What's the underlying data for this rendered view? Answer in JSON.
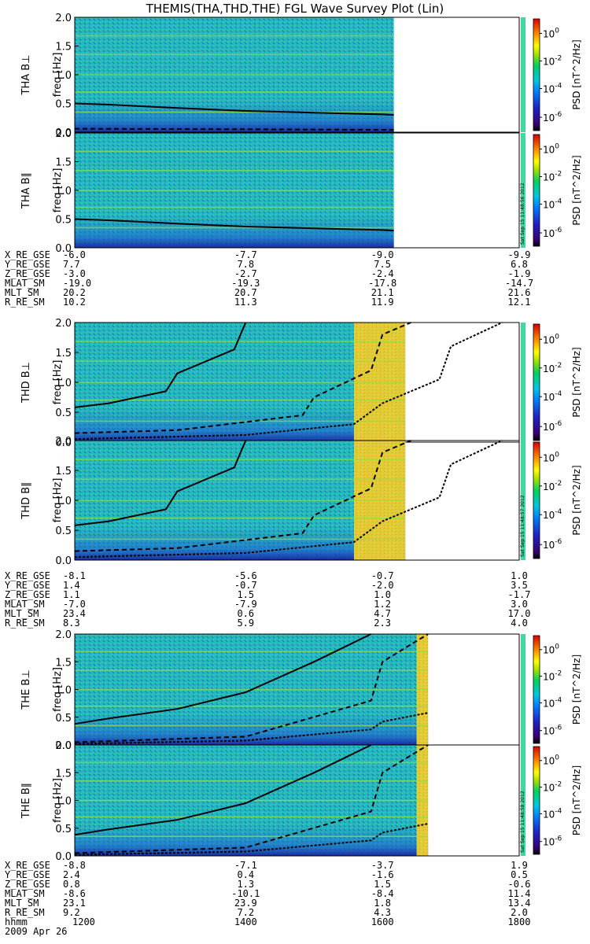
{
  "chart_data": {
    "type": "heatmap",
    "title": "THEMIS(THA,THD,THE) FGL Wave Survey Plot (Lin)",
    "ylabel": "freq [Hz]",
    "colorbar_label": "PSD [nT^2/Hz]",
    "colorbar_ticks": [
      "10^0",
      "10^-2",
      "10^-4",
      "10^-6"
    ],
    "y_ticks": [
      "0.0",
      "0.5",
      "1.0",
      "1.5",
      "2.0"
    ],
    "ylim": [
      0,
      2.0
    ],
    "x_range_hhmm": [
      1130,
      1800
    ],
    "date_label": "2009 Apr 26",
    "time_label_name": "hhmm",
    "time_ticks": [
      "1200",
      "1400",
      "1600",
      "1800"
    ],
    "stamps": [
      "Sat Sep 15 11:48:56 2012",
      "Sat Sep 15 11:48:57 2012",
      "Sat Sep 15 11:48:58 2012"
    ],
    "probes": [
      {
        "panels": [
          {
            "label": "THA B⊥",
            "data_end_x": 1610,
            "curve_solid": {
              "x": [
                1130,
                1200,
                1300,
                1400,
                1500,
                1600,
                1610
              ],
              "y": [
                0.5,
                0.48,
                0.42,
                0.37,
                0.34,
                0.31,
                0.3
              ]
            },
            "curve_dashed": {
              "x": [
                1130,
                1400,
                1610
              ],
              "y": [
                0.06,
                0.05,
                0.04
              ]
            }
          },
          {
            "label": "THA B∥",
            "data_end_x": 1610,
            "curve_solid": {
              "x": [
                1130,
                1200,
                1300,
                1400,
                1500,
                1600,
                1610
              ],
              "y": [
                0.5,
                0.48,
                0.42,
                0.37,
                0.34,
                0.31,
                0.3
              ]
            }
          }
        ],
        "ephemeris": {
          "x_pos": [
            1130,
            1400,
            1600,
            1800
          ],
          "rows": [
            {
              "name": "X_RE_GSE",
              "values": [
                "-6.0",
                "-7.7",
                "-9.0",
                "-9.9"
              ]
            },
            {
              "name": "Y_RE_GSE",
              "values": [
                "7.7",
                "7.8",
                "7.5",
                "6.8"
              ]
            },
            {
              "name": "Z_RE_GSE",
              "values": [
                "-3.0",
                "-2.7",
                "-2.4",
                "-1.9"
              ]
            },
            {
              "name": "MLAT_SM",
              "values": [
                "-19.0",
                "-19.3",
                "-17.8",
                "-14.7"
              ]
            },
            {
              "name": "MLT_SM",
              "values": [
                "20.2",
                "20.7",
                "21.1",
                "21.6"
              ]
            },
            {
              "name": "R_RE_SM",
              "values": [
                "10.2",
                "11.3",
                "11.9",
                "12.1"
              ]
            }
          ]
        }
      },
      {
        "panels": [
          {
            "label": "THD B⊥",
            "data_end_x": 1620,
            "bright_from_x": 1535,
            "curve_solid": {
              "x": [
                1130,
                1200,
                1250,
                1300,
                1350,
                1400
              ],
              "y": [
                0.58,
                0.65,
                0.85,
                1.15,
                1.55,
                2.0
              ]
            },
            "curve_dashed": {
              "x": [
                1130,
                1300,
                1450,
                1500,
                1550,
                1600,
                1625
              ],
              "y": [
                0.15,
                0.2,
                0.45,
                0.75,
                1.2,
                1.8,
                2.0
              ]
            },
            "curve_dotted": {
              "x": [
                1130,
                1400,
                1535,
                1600,
                1650,
                1700,
                1745
              ],
              "y": [
                0.05,
                0.12,
                0.3,
                0.65,
                1.05,
                1.6,
                2.0
              ]
            }
          },
          {
            "label": "THD B∥",
            "data_end_x": 1620,
            "bright_from_x": 1535,
            "curve_solid": {
              "x": [
                1130,
                1200,
                1250,
                1300,
                1350,
                1400
              ],
              "y": [
                0.58,
                0.65,
                0.85,
                1.15,
                1.55,
                2.0
              ]
            },
            "curve_dashed": {
              "x": [
                1130,
                1300,
                1450,
                1500,
                1550,
                1600,
                1625
              ],
              "y": [
                0.15,
                0.2,
                0.45,
                0.75,
                1.2,
                1.8,
                2.0
              ]
            },
            "curve_dotted": {
              "x": [
                1130,
                1400,
                1535,
                1600,
                1650,
                1700,
                1745
              ],
              "y": [
                0.05,
                0.12,
                0.3,
                0.65,
                1.05,
                1.6,
                2.0
              ]
            }
          }
        ],
        "ephemeris": {
          "x_pos": [
            1130,
            1400,
            1600,
            1800
          ],
          "rows": [
            {
              "name": "X_RE_GSE",
              "values": [
                "-8.1",
                "-5.6",
                "-0.7",
                "1.0"
              ]
            },
            {
              "name": "Y_RE_GSE",
              "values": [
                "1.4",
                "-0.7",
                "-2.0",
                "3.5"
              ]
            },
            {
              "name": "Z_RE_GSE",
              "values": [
                "1.1",
                "1.5",
                "1.0",
                "-1.7"
              ]
            },
            {
              "name": "MLAT_SM",
              "values": [
                "-7.0",
                "-7.9",
                "1.2",
                "3.0"
              ]
            },
            {
              "name": "MLT_SM",
              "values": [
                "23.4",
                "0.6",
                "4.7",
                "17.0"
              ]
            },
            {
              "name": "R_RE_SM",
              "values": [
                "8.3",
                "5.9",
                "2.3",
                "4.0"
              ]
            }
          ]
        }
      },
      {
        "panels": [
          {
            "label": "THE B⊥",
            "data_end_x": 1640,
            "bright_from_x": 1590,
            "curve_solid": {
              "x": [
                1130,
                1200,
                1300,
                1400,
                1500,
                1550
              ],
              "y": [
                0.38,
                0.48,
                0.65,
                0.95,
                1.5,
                2.0
              ]
            },
            "curve_dashed": {
              "x": [
                1130,
                1400,
                1550,
                1600,
                1640
              ],
              "y": [
                0.05,
                0.15,
                0.8,
                1.5,
                2.0
              ]
            },
            "curve_dotted": {
              "x": [
                1130,
                1400,
                1550,
                1600,
                1640
              ],
              "y": [
                0.02,
                0.08,
                0.28,
                0.42,
                0.58
              ]
            }
          },
          {
            "label": "THE B∥",
            "data_end_x": 1640,
            "bright_from_x": 1590,
            "curve_solid": {
              "x": [
                1130,
                1200,
                1300,
                1400,
                1500,
                1550
              ],
              "y": [
                0.38,
                0.48,
                0.65,
                0.95,
                1.5,
                2.0
              ]
            },
            "curve_dashed": {
              "x": [
                1130,
                1400,
                1550,
                1600,
                1640
              ],
              "y": [
                0.05,
                0.15,
                0.8,
                1.5,
                2.0
              ]
            },
            "curve_dotted": {
              "x": [
                1130,
                1400,
                1550,
                1600,
                1640
              ],
              "y": [
                0.02,
                0.08,
                0.28,
                0.42,
                0.58
              ]
            }
          }
        ],
        "ephemeris": {
          "x_pos": [
            1130,
            1400,
            1600,
            1800
          ],
          "rows": [
            {
              "name": "X_RE_GSE",
              "values": [
                "-8.8",
                "-7.1",
                "-3.7",
                "1.9"
              ]
            },
            {
              "name": "Y_RE_GSE",
              "values": [
                "2.4",
                "0.4",
                "-1.6",
                "0.5"
              ]
            },
            {
              "name": "Z_RE_GSE",
              "values": [
                "0.8",
                "1.3",
                "1.5",
                "-0.6"
              ]
            },
            {
              "name": "MLAT_SM",
              "values": [
                "-8.6",
                "-10.1",
                "-8.4",
                "11.4"
              ]
            },
            {
              "name": "MLT_SM",
              "values": [
                "23.1",
                "23.9",
                "1.8",
                "13.4"
              ]
            },
            {
              "name": "R_RE_SM",
              "values": [
                "9.2",
                "7.2",
                "4.3",
                "2.0"
              ]
            }
          ]
        }
      }
    ]
  }
}
